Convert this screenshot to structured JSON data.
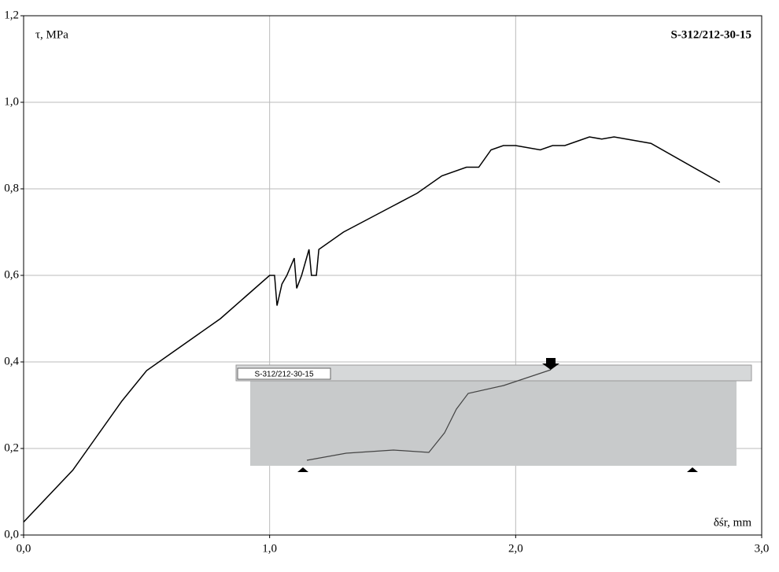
{
  "chart_data": {
    "type": "line",
    "title": "S-312/212-30-15",
    "y_label": "τ, MPa",
    "x_label": "δśr, mm",
    "inset_label": "S-312/212-30-15",
    "xlim": [
      0,
      3
    ],
    "ylim": [
      0,
      1.2
    ],
    "xticks": [
      {
        "value": 0,
        "label": "0,0"
      },
      {
        "value": 1,
        "label": "1,0"
      },
      {
        "value": 2,
        "label": "2,0"
      },
      {
        "value": 3,
        "label": "3,0"
      }
    ],
    "yticks": [
      {
        "value": 0,
        "label": "0,0"
      },
      {
        "value": 0.2,
        "label": "0,2"
      },
      {
        "value": 0.4,
        "label": "0,4"
      },
      {
        "value": 0.6,
        "label": "0,6"
      },
      {
        "value": 0.8,
        "label": "0,8"
      },
      {
        "value": 1.0,
        "label": "1,0"
      },
      {
        "value": 1.2,
        "label": "1,2"
      }
    ],
    "grid": true,
    "series": [
      {
        "name": "S-312/212-30-15",
        "color": "#000000",
        "x": [
          0,
          0.1,
          0.2,
          0.3,
          0.4,
          0.5,
          0.6,
          0.7,
          0.8,
          0.9,
          1.0,
          1.02,
          1.03,
          1.05,
          1.07,
          1.1,
          1.11,
          1.13,
          1.16,
          1.17,
          1.19,
          1.2,
          1.3,
          1.4,
          1.5,
          1.6,
          1.7,
          1.8,
          1.85,
          1.9,
          1.95,
          2.0,
          2.1,
          2.15,
          2.2,
          2.25,
          2.3,
          2.35,
          2.4,
          2.55,
          2.83
        ],
        "values": [
          0.03,
          0.09,
          0.15,
          0.23,
          0.31,
          0.38,
          0.42,
          0.46,
          0.5,
          0.55,
          0.6,
          0.6,
          0.53,
          0.58,
          0.6,
          0.64,
          0.57,
          0.6,
          0.66,
          0.6,
          0.6,
          0.66,
          0.7,
          0.73,
          0.76,
          0.79,
          0.83,
          0.85,
          0.85,
          0.89,
          0.9,
          0.9,
          0.89,
          0.9,
          0.9,
          0.91,
          0.92,
          0.915,
          0.92,
          0.905,
          0.815
        ]
      }
    ]
  }
}
